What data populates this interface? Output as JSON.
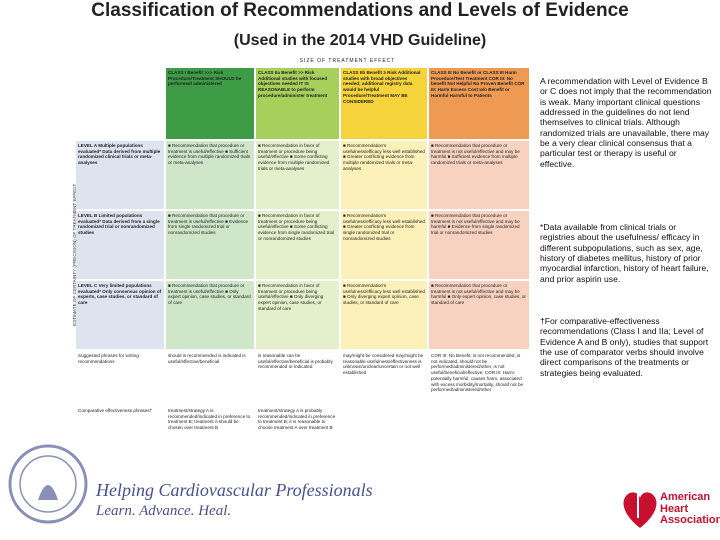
{
  "header": {
    "title": "Classification of Recommendations and Levels of Evidence",
    "subtitle": "(Used in the 2014 VHD Guideline)"
  },
  "table": {
    "axis_top": "SIZE OF TREATMENT EFFECT",
    "axis_left": "ESTIMATE OF CERTAINTY (PRECISION) OF TREATMENT EFFECT",
    "class_headers": [
      "CLASS I Benefit >>> Risk Procedure/Treatment SHOULD be performed/ administered",
      "CLASS IIa Benefit >> Risk Additional studies with focused objectives needed IT IS REASONABLE to perform procedure/administer treatment",
      "CLASS IIb Benefit ≥ Risk Additional studies with broad objectives needed; additional registry data would be helpful Procedure/Treatment MAY BE CONSIDERED",
      "CLASS III No Benefit or CLASS III Harm Procedure/Test Treatment COR III: No benefit Not Helpful No Proven Benefit COR III: Harm Excess Cost w/o Benefit or Harmful Harmful to Patients"
    ],
    "rows": [
      {
        "label": "LEVEL A Multiple populations evaluated* Data derived from multiple randomized clinical trials or meta-analyses",
        "cells": [
          "■ Recommendation that procedure or treatment is useful/effective ■ Sufficient evidence from multiple randomized trials or meta-analyses",
          "■ Recommendation in favor of treatment or procedure being useful/effective ■ Some conflicting evidence from multiple randomized trials or meta-analyses",
          "■ Recommendation's usefulness/efficacy less well established ■ Greater conflicting evidence from multiple randomized trials or meta-analyses",
          "■ Recommendation that procedure or treatment is not useful/effective and may be harmful ■ Sufficient evidence from multiple randomized trials or meta-analyses"
        ]
      },
      {
        "label": "LEVEL B Limited populations evaluated* Data derived from a single randomized trial or nonrandomized studies",
        "cells": [
          "■ Recommendation that procedure or treatment is useful/effective ■ Evidence from single randomized trial or nonrandomized studies",
          "■ Recommendation in favor of treatment or procedure being useful/effective ■ Some conflicting evidence from single randomized trial or nonrandomized studies",
          "■ Recommendation's usefulness/efficacy less well established ■ Greater conflicting evidence from single randomized trial or nonrandomized studies",
          "■ Recommendation that procedure or treatment is not useful/effective and may be harmful ■ Evidence from single randomized trial or nonrandomized studies"
        ]
      },
      {
        "label": "LEVEL C Very limited populations evaluated* Only consensus opinion of experts, case studies, or standard of care",
        "cells": [
          "■ Recommendation that procedure or treatment is useful/effective ■ Only expert opinion, case studies, or standard of care",
          "■ Recommendation in favor of treatment or procedure being useful/effective ■ Only diverging expert opinion, case studies, or standard of care",
          "■ Recommendation's usefulness/efficacy less well established ■ Only diverging expert opinion, case studies, or standard of care",
          "■ Recommendation that procedure or treatment is not useful/effective and may be harmful ■ Only expert opinion, case studies, or standard of care"
        ]
      },
      {
        "label": "Suggested phrases for writing recommendations",
        "cells": [
          "should is recommended is indicated is useful/effective/beneficial",
          "is reasonable can be useful/effective/beneficial is probably recommended or indicated",
          "may/might be considered may/might be reasonable usefulness/effectiveness is unknown/unclear/uncertain or not well established",
          "COR III: No Benefit: is not recommended, is not indicated, should not be performed/administered/other, is not useful/beneficial/effective; COR III: Harm: potentially harmful, causes harm, associated with excess morbidity/mortality, should not be performed/administered/other"
        ]
      },
      {
        "label": "Comparative effectiveness phrases†",
        "cells": [
          "treatment/strategy A is recommended/indicated in preference to treatment B; treatment A should be chosen over treatment B",
          "treatment/strategy A is probably recommended/indicated in preference to treatment B; it is reasonable to choose treatment A over treatment B",
          "",
          ""
        ]
      }
    ]
  },
  "notes": [
    "A recommendation with Level of Evidence B or C does not imply that the recommendation is weak. Many important clinical questions addressed in the guidelines do not lend themselves to clinical trials. Although randomized trials are unavailable, there may be a very clear clinical consensus that a particular test or therapy is useful or effective.",
    "*Data available from clinical trials or registries about the usefulness/ efficacy in different subpopulations, such as sex, age, history of diabetes mellitus, history of prior myocardial infarction, history of heart failure, and prior aspirin use.",
    "†For comparative-effectiveness recommendations (Class I and IIa; Level of Evidence A and B only), studies that support the use of comparator verbs should involve direct comparisons of the treatments or strategies being evaluated."
  ],
  "footer": {
    "tagline": "Helping Cardiovascular Professionals",
    "motto": "Learn. Advance. Heal.",
    "aha": [
      "American",
      "Heart",
      "Association."
    ]
  }
}
